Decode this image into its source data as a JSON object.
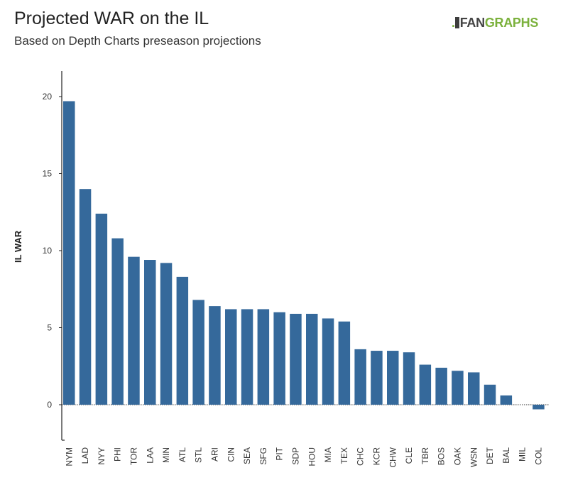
{
  "header": {
    "title": "Projected WAR on the IL",
    "subtitle": "Based on Depth Charts preseason projections"
  },
  "logo": {
    "dots": ".",
    "fan": "FAN",
    "graphs": "GRAPHS",
    "color_green": "#7bb13c",
    "color_dark": "#444444"
  },
  "chart_data": {
    "type": "bar",
    "title": "Projected WAR on the IL",
    "subtitle": "Based on Depth Charts preseason projections",
    "xlabel": "",
    "ylabel": "IL WAR",
    "categories": [
      "NYM",
      "LAD",
      "NYY",
      "PHI",
      "TOR",
      "LAA",
      "MIN",
      "ATL",
      "STL",
      "ARI",
      "CIN",
      "SEA",
      "SFG",
      "PIT",
      "SDP",
      "HOU",
      "MIA",
      "TEX",
      "CHC",
      "KCR",
      "CHW",
      "CLE",
      "TBR",
      "BOS",
      "OAK",
      "WSN",
      "DET",
      "BAL",
      "MIL",
      "COL"
    ],
    "values": [
      19.7,
      14.0,
      12.4,
      10.8,
      9.6,
      9.4,
      9.2,
      8.3,
      6.8,
      6.4,
      6.2,
      6.2,
      6.2,
      6.0,
      5.9,
      5.9,
      5.6,
      5.4,
      3.6,
      3.5,
      3.5,
      3.4,
      2.6,
      2.4,
      2.2,
      2.1,
      1.3,
      0.6,
      0.0,
      -0.3
    ],
    "yticks": [
      0,
      5,
      10,
      15,
      20
    ],
    "ylim": [
      -2.3,
      21.8
    ],
    "bar_color": "#35699b",
    "grid": false,
    "legend": "none"
  }
}
